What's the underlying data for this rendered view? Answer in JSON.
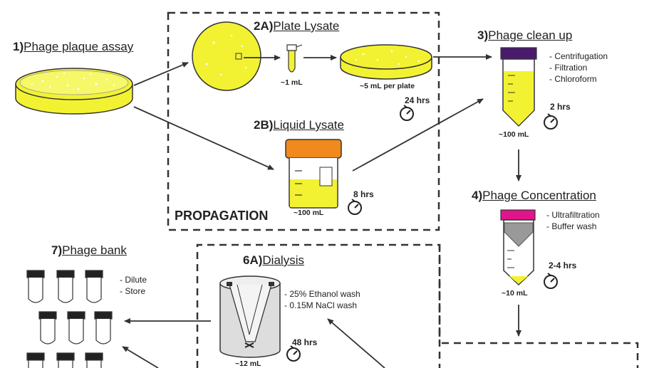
{
  "steps": {
    "s1": {
      "num": "1)",
      "title": "Phage plaque assay"
    },
    "s2a": {
      "num": "2A)",
      "title": "Plate Lysate"
    },
    "s2b": {
      "num": "2B)",
      "title": "Liquid Lysate"
    },
    "s3": {
      "num": "3)",
      "title": "Phage clean up"
    },
    "s4": {
      "num": "4)",
      "title": "Phage Concentration"
    },
    "s6a": {
      "num": "6A)",
      "title": "Dialysis"
    },
    "s7": {
      "num": "7)",
      "title": "Phage bank"
    }
  },
  "propagation_label": "PROPAGATION",
  "volumes": {
    "tube_1ml": "~1 mL",
    "plate_5ml": "~5 mL per plate",
    "jar_100ml": "~100 mL",
    "cleanup_100ml": "~100 mL",
    "conc_10ml": "~10 mL",
    "dialysis_12ml": "~12 mL"
  },
  "times": {
    "plate": "24 hrs",
    "liquid": "8 hrs",
    "cleanup": "2 hrs",
    "conc": "2-4 hrs",
    "dialysis": "48 hrs"
  },
  "notes": {
    "cleanup": [
      "- Centrifugation",
      "- Filtration",
      "- Chloroform"
    ],
    "conc": [
      "- Ultrafiltration",
      "- Buffer wash"
    ],
    "dialysis": [
      "- 25% Ethanol wash",
      "- 0.15M NaCl wash"
    ],
    "bank": [
      "- Dilute",
      "- Store"
    ]
  },
  "colors": {
    "lysate": "#f2f233",
    "cap_purple": "#4a1a6e",
    "cap_orange": "#f08a1c",
    "cap_magenta": "#e0158c",
    "dark": "#222222"
  }
}
